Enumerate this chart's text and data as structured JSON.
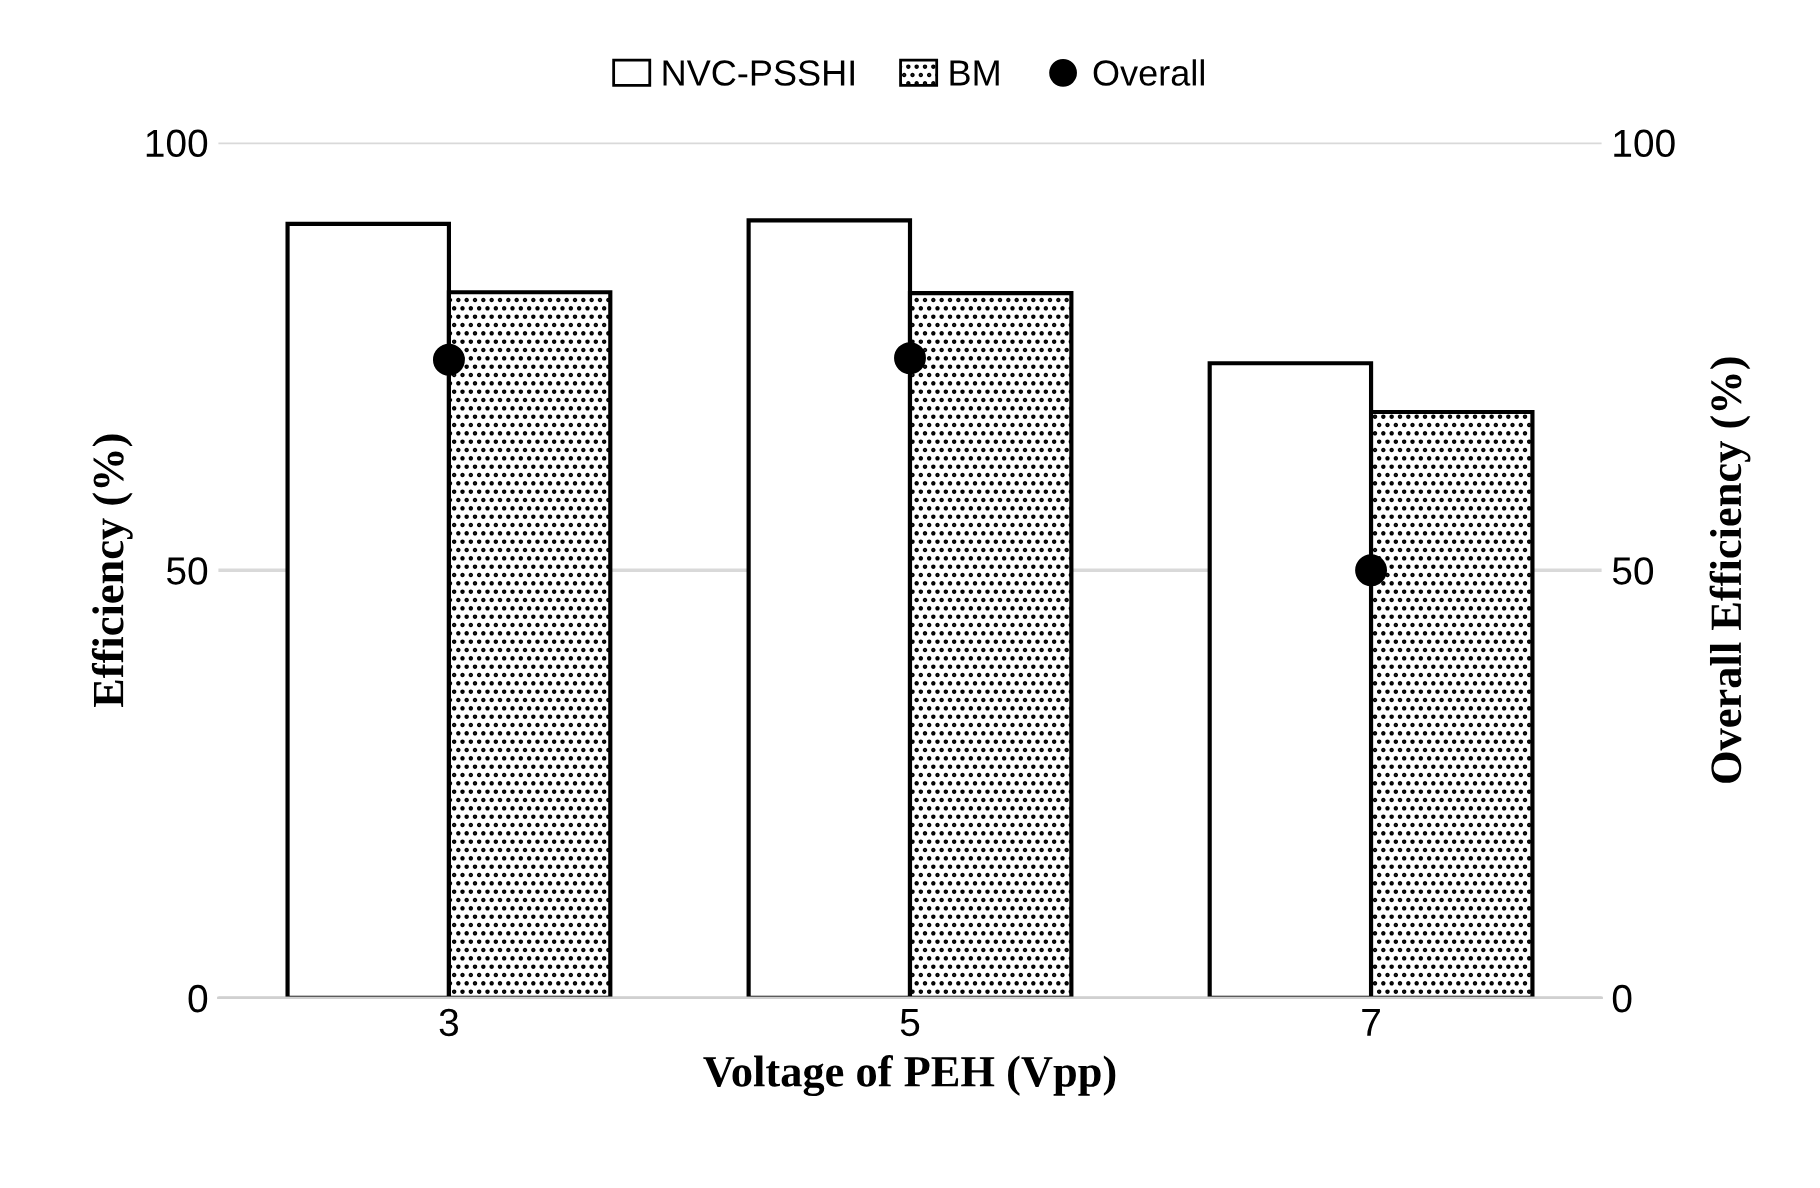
{
  "chart_data": {
    "type": "bar",
    "xlabel": "Voltage of PEH (Vpp)",
    "ylabel": "Efficiency (%)",
    "y2label": "Overall Efficiency (%)",
    "categories": [
      "3",
      "5",
      "7"
    ],
    "series": [
      {
        "name": "NVC-PSSHI",
        "color": "#ffffff",
        "values": [
          90.5,
          90.9,
          74.2
        ]
      },
      {
        "name": "BM",
        "color": "#000000",
        "values": [
          82.5,
          82.4,
          68.5
        ]
      },
      {
        "name": "Overall",
        "type": "scatter",
        "axis": "y2",
        "color": "#000000",
        "marker": "circle",
        "values": [
          74.6,
          74.8,
          50
        ]
      }
    ],
    "ylim": [
      0,
      100
    ],
    "yticks": [
      0,
      50,
      100
    ],
    "y2lim": [
      0,
      100
    ],
    "y2ticks": [
      0,
      50,
      100
    ],
    "grid": "y",
    "legend": "top"
  }
}
